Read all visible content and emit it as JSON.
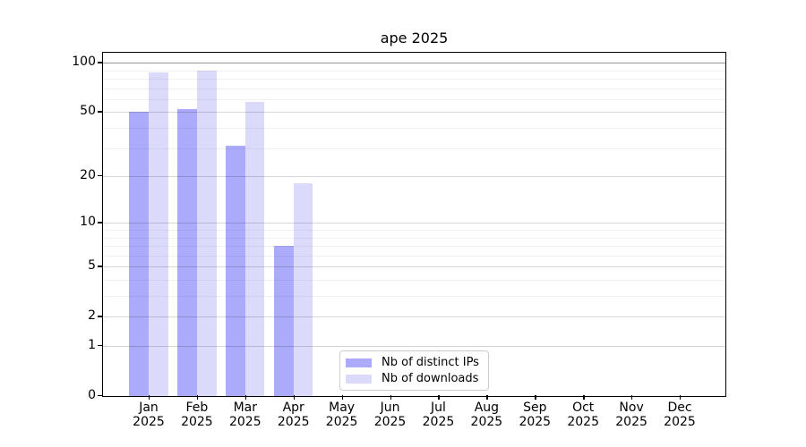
{
  "chart_data": {
    "type": "bar",
    "title": "ape 2025",
    "categories": [
      "Jan 2025",
      "Feb 2025",
      "Mar 2025",
      "Apr 2025",
      "May 2025",
      "Jun 2025",
      "Jul 2025",
      "Aug 2025",
      "Sep 2025",
      "Oct 2025",
      "Nov 2025",
      "Dec 2025"
    ],
    "series": [
      {
        "name": "Nb of distinct IPs",
        "color": "#abaafb",
        "values": [
          50,
          52,
          31,
          7,
          0,
          0,
          0,
          0,
          0,
          0,
          0,
          0
        ]
      },
      {
        "name": "Nb of downloads",
        "color": "#dbdafb",
        "values": [
          87,
          90,
          58,
          18,
          0,
          0,
          0,
          0,
          0,
          0,
          0,
          0
        ]
      }
    ],
    "xlabel": "",
    "ylabel": "",
    "y_scale": "log1p",
    "y_ticks": [
      0,
      1,
      2,
      5,
      10,
      20,
      50,
      100
    ],
    "y_minor_gridlines": [
      3,
      4,
      6,
      7,
      8,
      9,
      30,
      40,
      60,
      70,
      80,
      90
    ],
    "ylim": [
      0,
      115
    ],
    "grid": true,
    "legend_position": "lower center",
    "background": "#ffffff"
  }
}
